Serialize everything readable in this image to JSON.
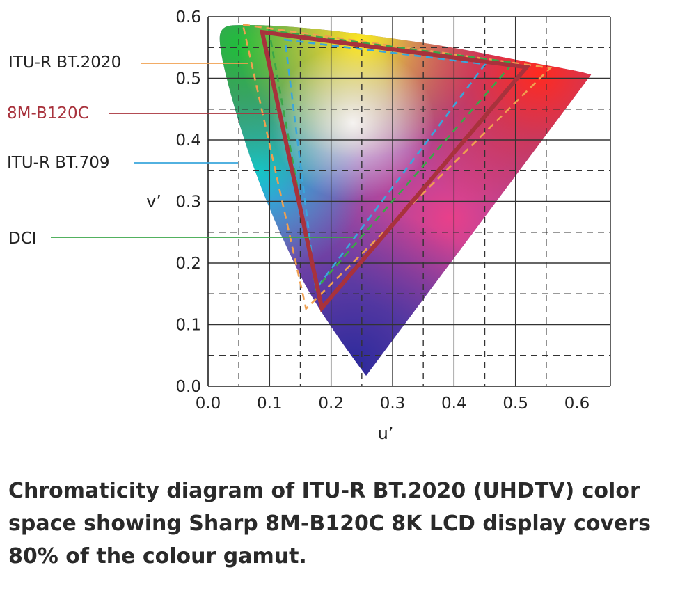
{
  "chart_data": {
    "type": "scatter",
    "subtype": "chromaticity-diagram",
    "xlabel": "u’",
    "ylabel": "v’",
    "xlim": [
      0.0,
      0.6
    ],
    "ylim": [
      0.0,
      0.6
    ],
    "x_ticks": [
      "0.0",
      "0.1",
      "0.2",
      "0.3",
      "0.4",
      "0.5",
      "0.6"
    ],
    "y_ticks": [
      "0.0",
      "0.1",
      "0.2",
      "0.3",
      "0.4",
      "0.5",
      "0.6"
    ],
    "x_tick_values": [
      0.0,
      0.1,
      0.2,
      0.3,
      0.4,
      0.5,
      0.6
    ],
    "y_tick_values": [
      0.0,
      0.1,
      0.2,
      0.3,
      0.4,
      0.5,
      0.6
    ],
    "grid": true,
    "grid_style": "dashed",
    "spectral_locus": [
      [
        0.257,
        0.017
      ],
      [
        0.18,
        0.12
      ],
      [
        0.12,
        0.24
      ],
      [
        0.075,
        0.35
      ],
      [
        0.04,
        0.46
      ],
      [
        0.018,
        0.55
      ],
      [
        0.02,
        0.585
      ],
      [
        0.06,
        0.587
      ],
      [
        0.12,
        0.585
      ],
      [
        0.2,
        0.578
      ],
      [
        0.3,
        0.565
      ],
      [
        0.4,
        0.55
      ],
      [
        0.5,
        0.53
      ],
      [
        0.6,
        0.512
      ],
      [
        0.623,
        0.506
      ]
    ],
    "series": [
      {
        "name": "ITU-R BT.2020",
        "color": "#f0a050",
        "style": "dashed",
        "u": [
          0.0566,
          0.5566,
          0.1593
        ],
        "v": [
          0.5871,
          0.5167,
          0.1258
        ]
      },
      {
        "name": "8M-B120C",
        "color": "#a8323c",
        "style": "solid",
        "u": [
          0.088,
          0.518,
          0.185
        ],
        "v": [
          0.575,
          0.518,
          0.127
        ]
      },
      {
        "name": "ITU-R BT.709",
        "color": "#3aa6dc",
        "style": "dashed",
        "u": [
          0.125,
          0.4507,
          0.1754
        ],
        "v": [
          0.5625,
          0.5229,
          0.1579
        ]
      },
      {
        "name": "DCI",
        "color": "#3aa648",
        "style": "dashed",
        "u": [
          0.099,
          0.4964,
          0.1754
        ],
        "v": [
          0.5777,
          0.5255,
          0.1579
        ]
      }
    ]
  },
  "caption": "Chromaticity diagram of ITU-R BT.2020 (UHDTV) color space showing Sharp 8M-B120C 8K LCD display covers 80% of the colour gamut."
}
